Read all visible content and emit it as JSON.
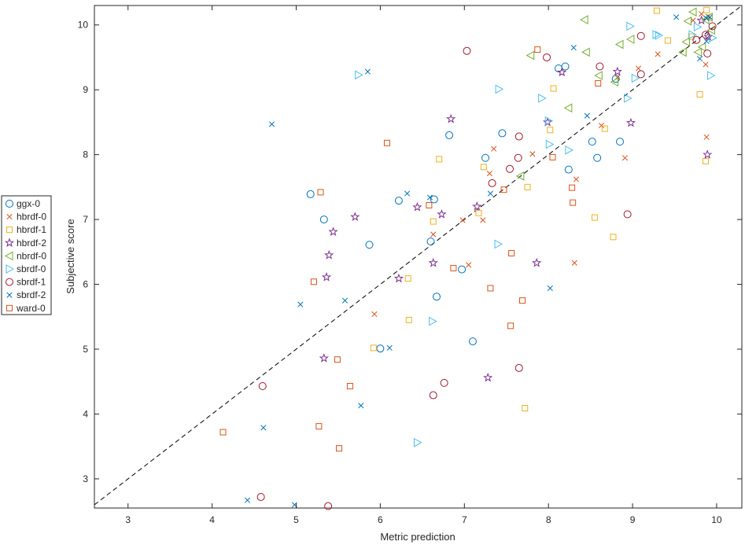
{
  "chart_data": {
    "type": "scatter",
    "title": "",
    "xlabel": "Metric prediction",
    "ylabel": "Subjective score",
    "xlim": [
      2.6,
      10.3
    ],
    "ylim": [
      2.55,
      10.3
    ],
    "xticks": [
      3,
      4,
      5,
      6,
      7,
      8,
      9,
      10
    ],
    "yticks": [
      3,
      4,
      5,
      6,
      7,
      8,
      9,
      10
    ],
    "grid": false,
    "legend_position": "outside-left",
    "reference_line": {
      "x": [
        2.6,
        10.3
      ],
      "y": [
        2.6,
        10.3
      ],
      "style": "dashed",
      "color": "#000000"
    },
    "series": [
      {
        "name": "ggx-0",
        "marker": "circle",
        "color": "#0072BD",
        "points": [
          [
            5.17,
            7.39
          ],
          [
            5.33,
            7.0
          ],
          [
            5.87,
            6.61
          ],
          [
            6.0,
            5.01
          ],
          [
            6.22,
            7.29
          ],
          [
            6.6,
            6.66
          ],
          [
            6.64,
            7.31
          ],
          [
            6.67,
            5.81
          ],
          [
            6.82,
            8.3
          ],
          [
            6.97,
            6.23
          ],
          [
            7.1,
            5.12
          ],
          [
            7.25,
            7.95
          ],
          [
            7.45,
            8.33
          ],
          [
            8.12,
            9.33
          ],
          [
            8.2,
            9.36
          ],
          [
            8.24,
            7.77
          ],
          [
            8.52,
            8.2
          ],
          [
            8.58,
            7.95
          ],
          [
            8.8,
            9.17
          ],
          [
            8.85,
            8.2
          ]
        ]
      },
      {
        "name": "hbrdf-0",
        "marker": "cross",
        "color": "#D95319",
        "points": [
          [
            5.93,
            5.54
          ],
          [
            6.63,
            6.77
          ],
          [
            6.98,
            6.99
          ],
          [
            7.05,
            6.3
          ],
          [
            7.22,
            6.99
          ],
          [
            7.3,
            7.71
          ],
          [
            7.35,
            8.09
          ],
          [
            7.81,
            8.01
          ],
          [
            8.31,
            6.33
          ],
          [
            8.33,
            7.62
          ],
          [
            8.63,
            8.45
          ],
          [
            8.82,
            9.19
          ],
          [
            8.91,
            7.95
          ],
          [
            9.07,
            9.33
          ],
          [
            9.3,
            9.55
          ],
          [
            9.72,
            10.07
          ],
          [
            9.82,
            10.17
          ],
          [
            9.87,
            9.39
          ],
          [
            9.88,
            8.27
          ],
          [
            9.9,
            10.13
          ]
        ]
      },
      {
        "name": "hbrdf-1",
        "marker": "square",
        "color": "#EDB120",
        "points": [
          [
            5.92,
            5.02
          ],
          [
            6.33,
            6.09
          ],
          [
            6.34,
            5.45
          ],
          [
            6.63,
            6.97
          ],
          [
            6.7,
            7.93
          ],
          [
            7.17,
            7.1
          ],
          [
            7.23,
            7.81
          ],
          [
            7.72,
            4.09
          ],
          [
            7.75,
            7.5
          ],
          [
            8.02,
            8.38
          ],
          [
            8.06,
            9.02
          ],
          [
            8.55,
            7.03
          ],
          [
            8.67,
            8.4
          ],
          [
            8.77,
            6.73
          ],
          [
            9.29,
            10.22
          ],
          [
            9.42,
            9.76
          ],
          [
            9.7,
            9.82
          ],
          [
            9.8,
            8.93
          ],
          [
            9.87,
            7.9
          ],
          [
            9.88,
            10.23
          ]
        ]
      },
      {
        "name": "hbrdf-2",
        "marker": "star",
        "color": "#7E2F8E",
        "points": [
          [
            5.33,
            4.86
          ],
          [
            5.36,
            6.11
          ],
          [
            5.39,
            6.45
          ],
          [
            5.44,
            6.81
          ],
          [
            5.7,
            7.04
          ],
          [
            6.22,
            6.09
          ],
          [
            6.44,
            7.19
          ],
          [
            6.63,
            6.33
          ],
          [
            6.73,
            7.08
          ],
          [
            6.84,
            8.55
          ],
          [
            7.15,
            7.2
          ],
          [
            7.28,
            4.56
          ],
          [
            7.86,
            6.33
          ],
          [
            7.99,
            8.5
          ],
          [
            8.16,
            9.27
          ],
          [
            8.82,
            9.28
          ],
          [
            8.98,
            8.49
          ],
          [
            9.82,
            10.07
          ],
          [
            9.89,
            8.0
          ],
          [
            9.9,
            9.82
          ]
        ]
      },
      {
        "name": "nbrdf-0",
        "marker": "triangle-left",
        "color": "#77AC30",
        "points": [
          [
            7.67,
            7.67
          ],
          [
            7.79,
            9.53
          ],
          [
            8.24,
            8.72
          ],
          [
            8.43,
            10.08
          ],
          [
            8.45,
            9.58
          ],
          [
            8.6,
            9.22
          ],
          [
            8.79,
            9.12
          ],
          [
            8.85,
            9.7
          ],
          [
            8.98,
            9.78
          ],
          [
            9.6,
            9.58
          ],
          [
            9.64,
            9.74
          ],
          [
            9.66,
            10.06
          ],
          [
            9.72,
            10.2
          ],
          [
            9.78,
            9.58
          ],
          [
            9.83,
            9.66
          ],
          [
            9.87,
            10.08
          ],
          [
            9.91,
            10.12
          ],
          [
            9.94,
            9.92
          ]
        ]
      },
      {
        "name": "sbrdf-0",
        "marker": "triangle-right",
        "color": "#4DBEEE",
        "points": [
          [
            5.74,
            9.23
          ],
          [
            6.44,
            3.56
          ],
          [
            6.62,
            5.43
          ],
          [
            7.4,
            6.62
          ],
          [
            7.41,
            9.01
          ],
          [
            7.92,
            8.87
          ],
          [
            8.0,
            8.52
          ],
          [
            8.01,
            8.16
          ],
          [
            8.24,
            8.07
          ],
          [
            8.94,
            8.87
          ],
          [
            8.97,
            9.98
          ],
          [
            9.03,
            9.18
          ],
          [
            9.28,
            9.85
          ],
          [
            9.31,
            9.84
          ],
          [
            9.71,
            9.85
          ],
          [
            9.77,
            9.97
          ],
          [
            9.93,
            9.22
          ],
          [
            9.95,
            9.8
          ]
        ]
      },
      {
        "name": "sbrdf-1",
        "marker": "circle",
        "color": "#A2142F",
        "points": [
          [
            4.58,
            2.72
          ],
          [
            4.6,
            4.43
          ],
          [
            5.38,
            2.58
          ],
          [
            6.63,
            4.29
          ],
          [
            6.76,
            4.48
          ],
          [
            7.03,
            9.6
          ],
          [
            7.33,
            7.56
          ],
          [
            7.54,
            7.78
          ],
          [
            7.64,
            7.95
          ],
          [
            7.65,
            4.71
          ],
          [
            7.65,
            8.28
          ],
          [
            7.98,
            9.5
          ],
          [
            8.61,
            9.36
          ],
          [
            8.94,
            7.08
          ],
          [
            9.1,
            9.24
          ],
          [
            9.1,
            9.83
          ],
          [
            9.76,
            9.77
          ],
          [
            9.87,
            9.85
          ],
          [
            9.89,
            9.56
          ],
          [
            9.95,
            9.98
          ]
        ]
      },
      {
        "name": "sbrdf-2",
        "marker": "x",
        "color": "#0072BD",
        "points": [
          [
            4.42,
            2.67
          ],
          [
            4.61,
            3.79
          ],
          [
            4.71,
            8.47
          ],
          [
            4.98,
            2.6
          ],
          [
            5.05,
            5.69
          ],
          [
            5.58,
            5.75
          ],
          [
            5.77,
            4.13
          ],
          [
            5.85,
            9.28
          ],
          [
            6.11,
            5.02
          ],
          [
            6.32,
            7.4
          ],
          [
            6.59,
            7.34
          ],
          [
            7.31,
            7.4
          ],
          [
            8.02,
            5.94
          ],
          [
            8.3,
            9.65
          ],
          [
            8.46,
            8.6
          ],
          [
            9.52,
            10.12
          ],
          [
            9.8,
            9.48
          ],
          [
            9.88,
            9.75
          ],
          [
            9.88,
            10.1
          ],
          [
            9.92,
            10.12
          ]
        ]
      },
      {
        "name": "ward-0",
        "marker": "square",
        "color": "#D95319",
        "points": [
          [
            4.13,
            3.72
          ],
          [
            5.21,
            6.04
          ],
          [
            5.27,
            3.81
          ],
          [
            5.29,
            7.42
          ],
          [
            5.49,
            4.84
          ],
          [
            5.51,
            3.47
          ],
          [
            5.64,
            4.43
          ],
          [
            6.08,
            8.18
          ],
          [
            6.58,
            7.22
          ],
          [
            6.87,
            6.25
          ],
          [
            7.31,
            5.94
          ],
          [
            7.47,
            7.46
          ],
          [
            7.55,
            5.36
          ],
          [
            7.56,
            6.48
          ],
          [
            7.69,
            5.75
          ],
          [
            7.87,
            9.62
          ],
          [
            8.05,
            7.96
          ],
          [
            8.28,
            7.49
          ],
          [
            8.29,
            7.26
          ],
          [
            8.59,
            9.1
          ]
        ]
      }
    ]
  }
}
